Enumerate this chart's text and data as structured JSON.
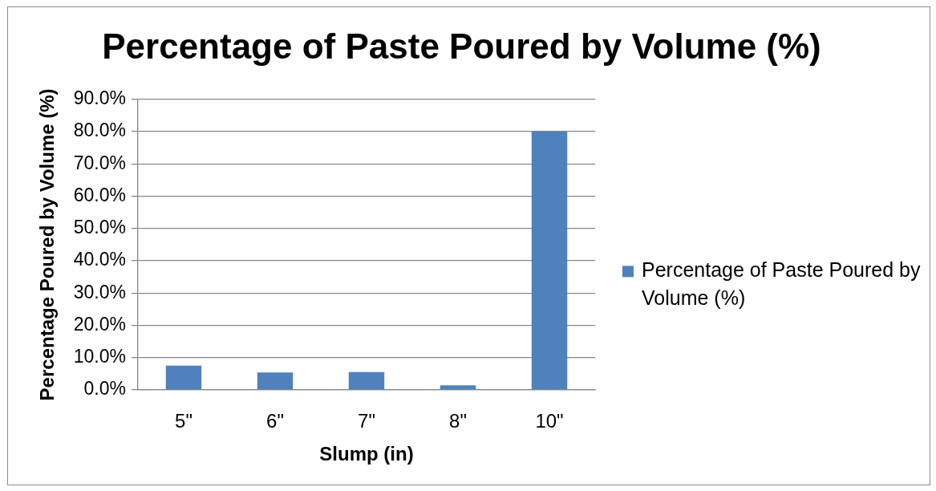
{
  "chart_data": {
    "type": "bar",
    "title": "Percentage of Paste Poured by Volume (%)",
    "xlabel": "Slump (in)",
    "ylabel": "Percentage Poured by Volume (%)",
    "categories": [
      "5\"",
      "6\"",
      "7\"",
      "8\"",
      "10\""
    ],
    "series": [
      {
        "name": "Percentage of Paste Poured by Volume (%)",
        "color": "#4f81bd",
        "values": [
          7.5,
          5.4,
          5.5,
          1.4,
          80.0
        ]
      }
    ],
    "ylim": [
      0,
      90
    ],
    "yticks": [
      {
        "value": 0,
        "label": "0.0%"
      },
      {
        "value": 10,
        "label": "10.0%"
      },
      {
        "value": 20,
        "label": "20.0%"
      },
      {
        "value": 30,
        "label": "30.0%"
      },
      {
        "value": 40,
        "label": "40.0%"
      },
      {
        "value": 50,
        "label": "50.0%"
      },
      {
        "value": 60,
        "label": "60.0%"
      },
      {
        "value": 70,
        "label": "70.0%"
      },
      {
        "value": 80,
        "label": "80.0%"
      },
      {
        "value": 90,
        "label": "90.0%"
      }
    ],
    "grid": "y",
    "legend": "right"
  }
}
